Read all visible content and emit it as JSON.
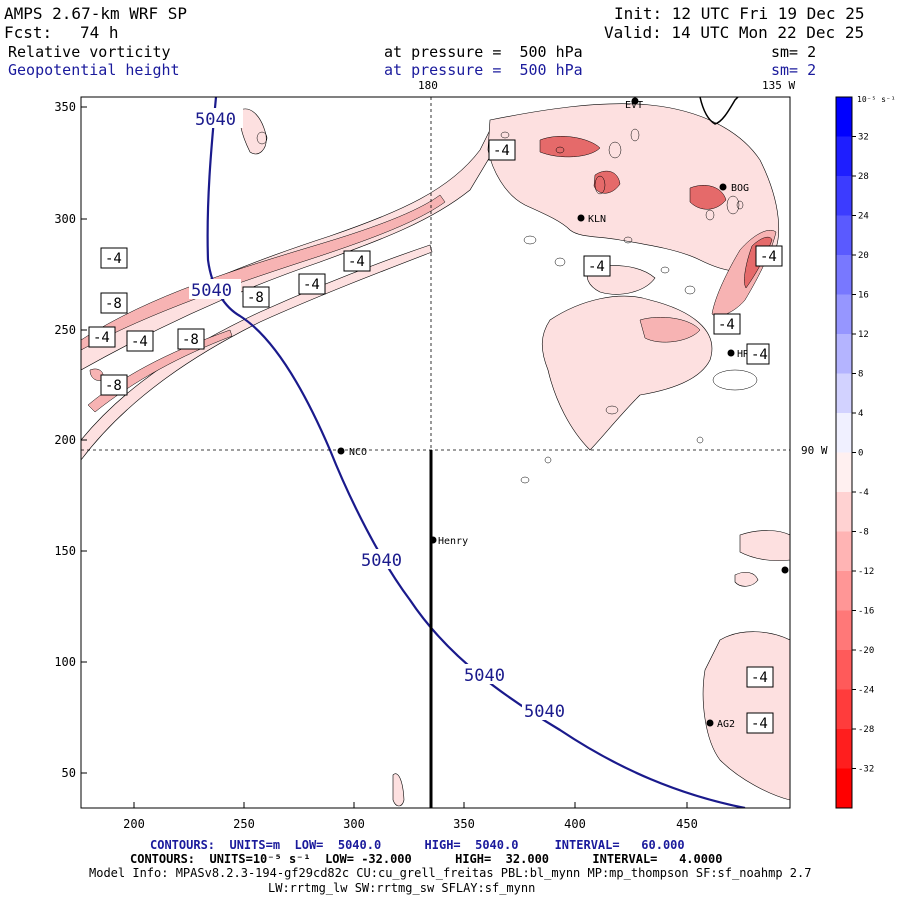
{
  "header": {
    "model": "AMPS 2.67-km WRF SP",
    "init": "Init: 12 UTC Fri 19 Dec 25",
    "fcst_label": "Fcst:",
    "fcst_value": "74 h",
    "valid": "Valid: 14 UTC Mon 22 Dec 25",
    "field1": "Relative vorticity",
    "field1_level": "at pressure =  500 hPa",
    "field1_sm": "sm= 2",
    "field2": "Geopotential height",
    "field2_level": "at pressure =  500 hPa",
    "field2_sm": "sm= 2"
  },
  "map": {
    "lon_labels": {
      "top_180": "180",
      "top_135w": "135 W",
      "right_90w": "90 W"
    },
    "x_ticks": [
      "200",
      "250",
      "300",
      "350",
      "400",
      "450"
    ],
    "y_ticks": [
      "350",
      "300",
      "250",
      "200",
      "150",
      "100",
      "50"
    ],
    "stations": [
      {
        "name": "NCO"
      },
      {
        "name": "Henry"
      },
      {
        "name": "KLN"
      },
      {
        "name": "BOG"
      },
      {
        "name": "HRZ"
      },
      {
        "name": "AG2"
      },
      {
        "name": "EVT"
      }
    ],
    "height_contour_labels": [
      "5040",
      "5040",
      "5040",
      "5040",
      "5040"
    ],
    "vorticity_labels": [
      "-4",
      "-8",
      "-4",
      "-4",
      "-8",
      "-8",
      "-8",
      "-4",
      "-4",
      "-4",
      "-4",
      "-4",
      "-4",
      "-4",
      "-4",
      "-4"
    ]
  },
  "colorbar": {
    "unit": "10⁻⁵ s⁻¹",
    "labels": [
      "32",
      "28",
      "24",
      "20",
      "16",
      "12",
      "8",
      "4",
      "0",
      "-4",
      "-8",
      "-12",
      "-16",
      "-20",
      "-24",
      "-28",
      "-32"
    ]
  },
  "footer": {
    "contours1": "CONTOURS:  UNITS=m  LOW=  5040.0      HIGH=  5040.0     INTERVAL=   60.000",
    "contours2": "CONTOURS:  UNITS=10⁻⁵ s⁻¹  LOW= -32.000      HIGH=  32.000      INTERVAL=   4.0000",
    "model_info": "Model Info: MPASv8.2.3-194-gf29cd82c CU:cu_grell_freitas PBL:bl_mynn MP:mp_thompson SF:sf_noahmp 2.7",
    "model_info2": "LW:rrtmg_lw SW:rrtmg_sw SFLAY:sf_mynn"
  },
  "colors": {
    "height_contour": "#1a1a8c",
    "vort_fill_light": "#fde0e0",
    "vort_fill_mid": "#f7b3b3",
    "vort_fill_dark": "#e56a6a"
  }
}
